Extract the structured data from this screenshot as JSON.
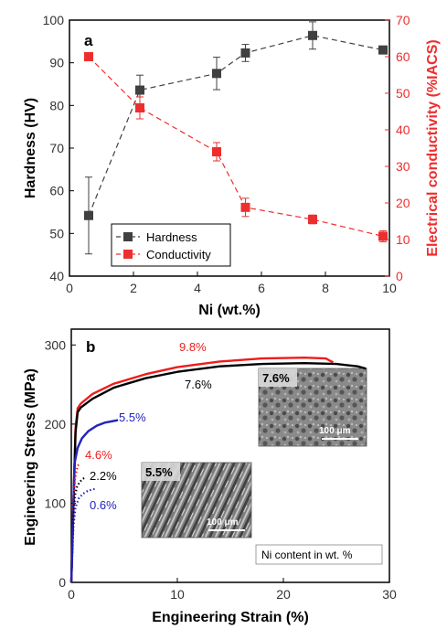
{
  "colors": {
    "hardness": "#404040",
    "conductivity": "#ee2e2e",
    "c98": "#ee1c1c",
    "c76": "#000000",
    "c55": "#2222bb",
    "c46": "#ee1c1c",
    "c22": "#000000",
    "c06": "#2222bb"
  },
  "chart_data": [
    {
      "type": "line",
      "panel_label": "a",
      "xlabel": "Ni (wt.%)",
      "ylabel": "Hardness (HV)",
      "y2label": "Electrical conductivity (%IACS)",
      "xlim": [
        0,
        10
      ],
      "ylim": [
        40,
        100
      ],
      "y2lim": [
        0,
        70
      ],
      "x_ticks": [
        "0",
        "2",
        "4",
        "6",
        "8",
        "10"
      ],
      "y_ticks": [
        "40",
        "50",
        "60",
        "70",
        "80",
        "90",
        "100"
      ],
      "y2_ticks": [
        "0",
        "10",
        "20",
        "30",
        "40",
        "50",
        "60",
        "70"
      ],
      "legend_position": "bottom-left",
      "series": [
        {
          "name": "Hardness",
          "axis": "left",
          "x": [
            0.6,
            2.2,
            4.6,
            5.5,
            7.6,
            9.8
          ],
          "y": [
            54.2,
            83.6,
            87.5,
            92.3,
            96.4,
            93.0
          ],
          "err": [
            9.0,
            3.5,
            3.8,
            2.0,
            3.2,
            0.6
          ]
        },
        {
          "name": "Conductivity",
          "axis": "right",
          "x": [
            0.6,
            2.2,
            4.6,
            5.5,
            7.6,
            9.8
          ],
          "y": [
            60.0,
            46.0,
            34.0,
            18.8,
            15.5,
            10.9
          ],
          "err": [
            0.8,
            3.0,
            2.5,
            2.5,
            1.2,
            1.5
          ]
        }
      ]
    },
    {
      "type": "line",
      "panel_label": "b",
      "xlabel": "Engineering Strain (%)",
      "ylabel": "Engineering Stress (MPa)",
      "xlim": [
        0,
        30
      ],
      "ylim": [
        0,
        320
      ],
      "x_ticks": [
        "0",
        "10",
        "20",
        "30"
      ],
      "y_ticks": [
        "0",
        "100",
        "200",
        "300"
      ],
      "note": "Ni content in wt. %",
      "series": [
        {
          "name": "9.8%",
          "style": "solid",
          "x": [
            0,
            0.4,
            0.6,
            0.9,
            2,
            4,
            7,
            10,
            14,
            18,
            22,
            24,
            24.4,
            24.7
          ],
          "y": [
            0,
            195,
            220,
            226,
            238,
            251,
            263,
            272,
            279,
            283,
            284,
            283,
            280,
            278
          ]
        },
        {
          "name": "7.6%",
          "style": "solid",
          "x": [
            0,
            0.4,
            0.6,
            0.9,
            2,
            4,
            7,
            10,
            14,
            18,
            22,
            25,
            27,
            27.8
          ],
          "y": [
            0,
            190,
            215,
            221,
            232,
            246,
            258,
            266,
            273,
            276,
            277,
            276,
            273,
            270
          ]
        },
        {
          "name": "5.5%",
          "style": "solid",
          "x": [
            0,
            0.3,
            0.6,
            1.0,
            1.6,
            2.4,
            3.2,
            4.4
          ],
          "y": [
            0,
            150,
            170,
            182,
            191,
            198,
            202,
            205
          ]
        },
        {
          "name": "4.6%",
          "style": "dotted",
          "x": [
            0,
            0.2,
            0.35,
            0.5,
            0.65,
            0.85
          ],
          "y": [
            0,
            100,
            130,
            142,
            148,
            150
          ]
        },
        {
          "name": "2.2%",
          "style": "dotted",
          "x": [
            0,
            0.2,
            0.35,
            0.55,
            0.8,
            1.1,
            1.4
          ],
          "y": [
            0,
            85,
            110,
            121,
            127,
            131,
            133
          ]
        },
        {
          "name": "0.6%",
          "style": "dotted",
          "x": [
            0,
            0.2,
            0.4,
            0.7,
            1.1,
            1.6,
            2.2
          ],
          "y": [
            0,
            70,
            95,
            106,
            112,
            116,
            118
          ]
        }
      ],
      "curve_labels": {
        "c98": "9.8%",
        "c76": "7.6%",
        "c55": "5.5%",
        "c46": "4.6%",
        "c22": "2.2%",
        "c06": "0.6%"
      },
      "insets": [
        {
          "label": "7.6%",
          "scale_bar": "100 μm"
        },
        {
          "label": "5.5%",
          "scale_bar": "100 μm"
        }
      ]
    }
  ]
}
